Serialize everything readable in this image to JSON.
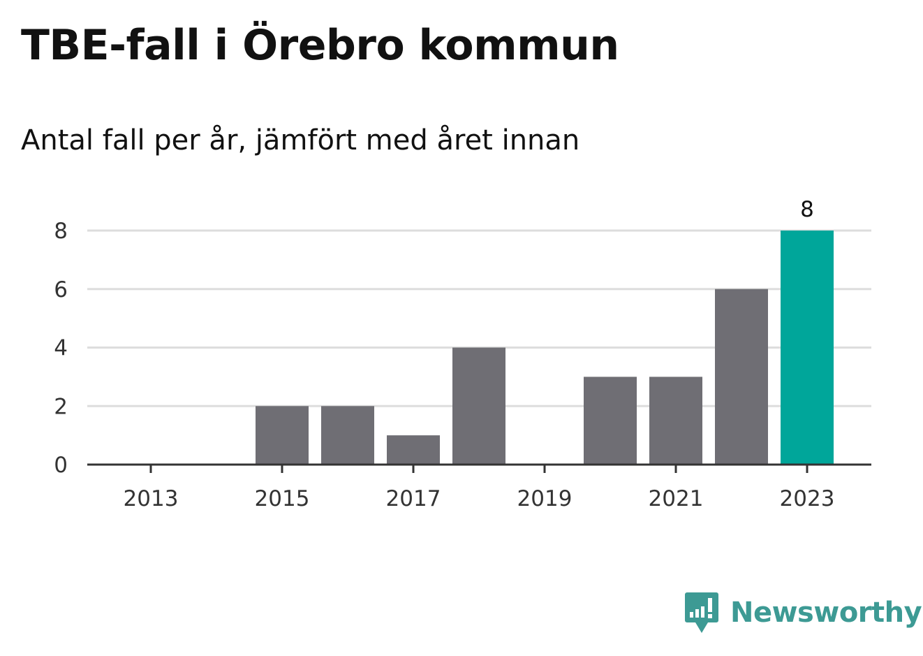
{
  "header": {
    "title": "TBE-fall i Örebro kommun",
    "subtitle": "Antal fall per år, jämfört med året innan"
  },
  "brand": {
    "name": "Newsworthy",
    "color": "#3d9a94",
    "icon": "newsworthy-chart-badge-icon"
  },
  "colors": {
    "bar": "#6f6e74",
    "highlight": "#00a69a",
    "grid": "#dddddd",
    "axis": "#333333"
  },
  "chart_data": {
    "type": "bar",
    "categories": [
      "2013",
      "2014",
      "2015",
      "2016",
      "2017",
      "2018",
      "2019",
      "2020",
      "2021",
      "2022",
      "2023"
    ],
    "values": [
      0,
      0,
      2,
      2,
      1,
      4,
      0,
      3,
      3,
      6,
      8
    ],
    "highlight_category": "2023",
    "data_labels": [
      {
        "category": "2023",
        "text": "8"
      }
    ],
    "x_tick_labels": [
      "2013",
      "2015",
      "2017",
      "2019",
      "2021",
      "2023"
    ],
    "y_ticks": [
      0,
      2,
      4,
      6,
      8
    ],
    "ylim": [
      0,
      8
    ],
    "xlabel": "",
    "ylabel": "",
    "grid": true,
    "legend": false
  }
}
